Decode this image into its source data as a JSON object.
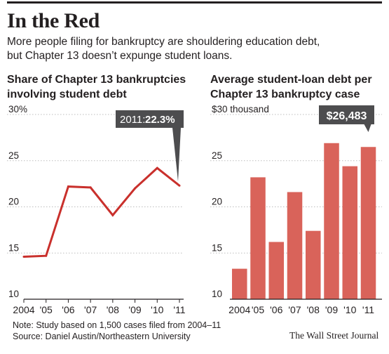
{
  "headline": "In the Red",
  "dek": [
    "More people filing for bankruptcy are shouldering education debt,",
    "but Chapter 13 doesn’t expunge student loans."
  ],
  "colors": {
    "line": "#c9302c",
    "bar": "#d9635a",
    "callout": "#4d4d4f",
    "grid": "#bdbdbd",
    "axis": "#231f20"
  },
  "chart_data": [
    {
      "type": "line",
      "title": [
        "Share of Chapter 13 bankruptcies",
        "involving student debt"
      ],
      "x": [
        "2004",
        "'05",
        "'06",
        "'07",
        "'08",
        "'09",
        "'10",
        "'11"
      ],
      "series": [
        {
          "values": [
            14.6,
            14.7,
            22.2,
            22.1,
            19.1,
            22.0,
            24.2,
            22.3
          ]
        }
      ],
      "ylim": [
        10,
        30
      ],
      "yticks": [
        "30%",
        "25",
        "20",
        "15",
        "10"
      ],
      "annotation": {
        "label": "2011:",
        "value": "22.3%"
      },
      "grid": true
    },
    {
      "type": "bar",
      "title": [
        "Average student-loan debt per",
        "Chapter 13 bankruptcy case"
      ],
      "categories": [
        "2004",
        "'05",
        "'06",
        "'07",
        "'08",
        "'09",
        "'10",
        "'11"
      ],
      "series": [
        {
          "values": [
            13300,
            23200,
            16200,
            21600,
            17400,
            26900,
            24400,
            26483
          ]
        }
      ],
      "ylim": [
        10000,
        30000
      ],
      "yticks": [
        "$30 thousand",
        "25",
        "20",
        "15",
        "10"
      ],
      "annotation": {
        "label": "$26,483"
      },
      "grid": true
    }
  ],
  "note": [
    "Note: Study based on 1,500 cases filed from 2004–11",
    "Source: Daniel Austin/Northeastern University"
  ],
  "credit": "The Wall Street Journal"
}
